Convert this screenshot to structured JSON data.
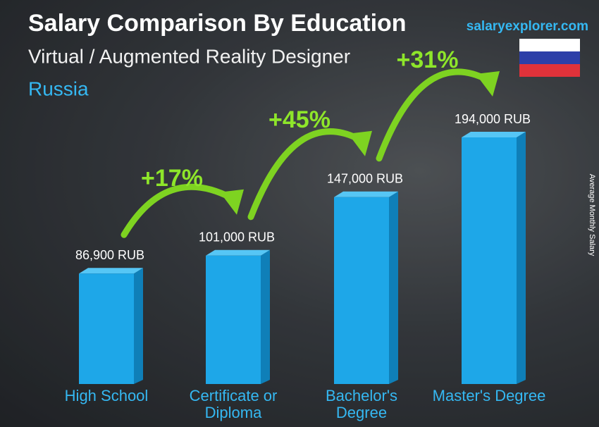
{
  "chart_data": {
    "type": "bar",
    "title": "Salary Comparison By Education",
    "subtitle": "Virtual / Augmented Reality Designer",
    "country": "Russia",
    "brand": "salaryexplorer.com",
    "y_axis_label": "Average Monthly Salary",
    "categories": [
      "High School",
      "Certificate or Diploma",
      "Bachelor's Degree",
      "Master's Degree"
    ],
    "values": [
      86900,
      101000,
      147000,
      194000
    ],
    "value_labels": [
      "86,900 RUB",
      "101,000 RUB",
      "147,000 RUB",
      "194,000 RUB"
    ],
    "increases": [
      "+17%",
      "+45%",
      "+31%"
    ],
    "color": "#1ea7e8"
  }
}
